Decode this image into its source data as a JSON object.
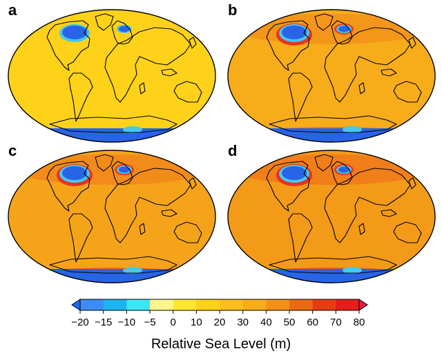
{
  "panels": [
    {
      "label": "a",
      "ocean_color": "#FFD21A"
    },
    {
      "label": "b",
      "ocean_color": "#F7AC1A"
    },
    {
      "label": "c",
      "ocean_color": "#F5A41A"
    },
    {
      "label": "d",
      "ocean_color": "#F39A18"
    }
  ],
  "colorbar": {
    "title": "Relative Sea Level (m)",
    "ticks": [
      "−20",
      "−15",
      "−10",
      "−5",
      "0",
      "10",
      "20",
      "30",
      "40",
      "50",
      "60",
      "70",
      "80"
    ],
    "colors": [
      "#1E6AF0",
      "#3C8CF5",
      "#1EB4F0",
      "#3CE6F5",
      "#FFF58C",
      "#FFE632",
      "#FFD21A",
      "#FFBE1E",
      "#F7AC1A",
      "#F39018",
      "#EB6A14",
      "#E63C14",
      "#E61E1E",
      "#E61E46"
    ]
  },
  "legend": {
    "ice_loss_color": "#2864E6",
    "ice_rim_color": "#46C8F0",
    "rebound_color": "#E8281E",
    "coast_color": "#000000"
  }
}
